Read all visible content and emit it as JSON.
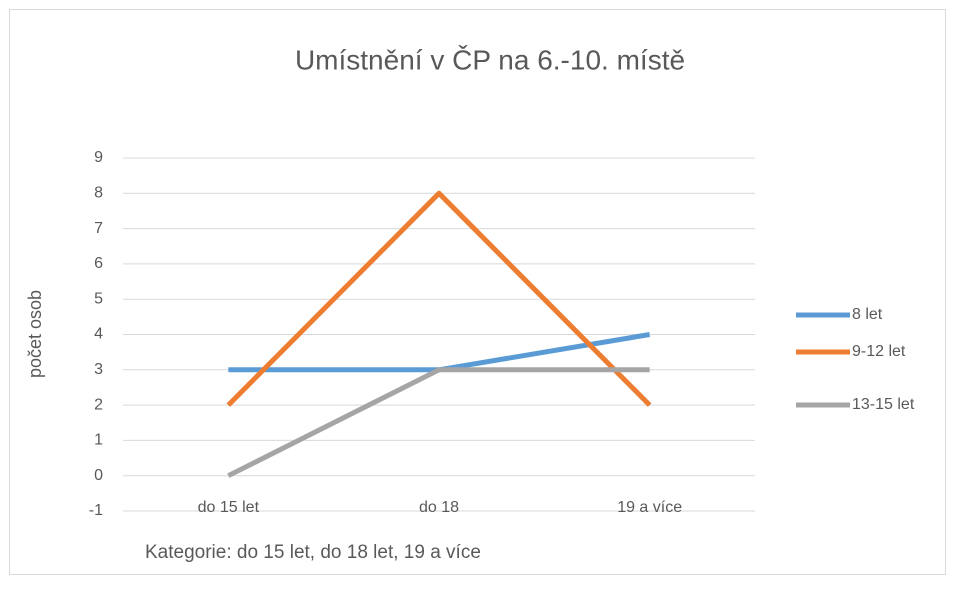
{
  "chart_data": {
    "type": "line",
    "title": "Umístnění v ČP na 6.-10. místě",
    "y_label": "počet osob",
    "x_label": "Kategorie: do 15 let, do 18 let, 19 a více",
    "categories": [
      "do 15 let",
      "do 18",
      "19 a více"
    ],
    "series": [
      {
        "name": "8 let",
        "color": "#5b9bd5",
        "values": [
          3,
          3,
          4
        ]
      },
      {
        "name": "9-12 let",
        "color": "#ed7d31",
        "values": [
          2,
          8,
          2
        ]
      },
      {
        "name": "13-15 let",
        "color": "#a5a5a5",
        "values": [
          0,
          3,
          3
        ]
      }
    ],
    "ylim": [
      -1,
      9
    ],
    "yticks": [
      -1,
      0,
      1,
      2,
      3,
      4,
      5,
      6,
      7,
      8,
      9
    ],
    "grid": true,
    "legend": "right"
  }
}
